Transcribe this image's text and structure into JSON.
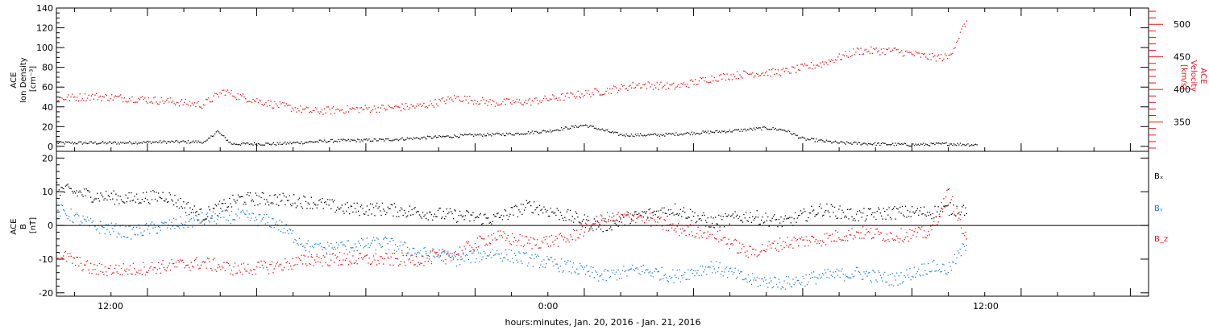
{
  "xlabel": "hours:minutes, Jan. 20, 2016 - Jan. 21, 2016",
  "x_ticks": [
    "12:00",
    "0:00",
    "12:00"
  ],
  "chart_data": [
    {
      "type": "scatter",
      "panel": "top",
      "ylabel_left": [
        "ACE",
        "Ion Density",
        "[cm⁻³]"
      ],
      "ylabel_right": [
        "ACE",
        "Velocity",
        "[km/s]"
      ],
      "x_range_hours": [
        9.5,
        39.5
      ],
      "ylim_left": [
        -5,
        140
      ],
      "ylim_right": [
        305,
        525
      ],
      "yticks_left": [
        "0",
        "20",
        "40",
        "60",
        "80",
        "100",
        "120",
        "140"
      ],
      "yticks_right": [
        "350",
        "400",
        "450",
        "500"
      ],
      "colors": {
        "density": "#000000",
        "velocity": "#ee1111"
      },
      "series": [
        {
          "axis": "left",
          "x": [
            9.5,
            11,
            12.5,
            13.6,
            13.9,
            14.3,
            15.5,
            17,
            18.5,
            20,
            21,
            22,
            23,
            24,
            25,
            26,
            27,
            28,
            29,
            29.5,
            30,
            31,
            32,
            33,
            34,
            34.8
          ],
          "values": [
            4,
            4,
            5,
            5,
            16,
            3,
            3,
            6,
            7,
            10,
            12,
            13,
            16,
            22,
            12,
            12,
            14,
            16,
            19,
            17,
            8,
            4,
            3,
            2,
            3,
            2
          ]
        },
        {
          "axis": "right",
          "x": [
            9.5,
            10.5,
            11.5,
            12.5,
            13.5,
            14.1,
            14.5,
            15.5,
            16.5,
            17.5,
            18.5,
            19.5,
            20.5,
            21.5,
            22.5,
            23.5,
            24.5,
            25.5,
            26.5,
            27.5,
            28.5,
            29.5,
            30.5,
            31.5,
            32.5,
            33.5,
            34,
            34.5
          ],
          "values": [
            387,
            390,
            387,
            383,
            377,
            398,
            390,
            377,
            367,
            370,
            372,
            375,
            388,
            380,
            382,
            390,
            398,
            408,
            405,
            418,
            425,
            428,
            440,
            460,
            460,
            450,
            450,
            507
          ]
        }
      ]
    },
    {
      "type": "scatter",
      "panel": "bottom",
      "ylabel_left": [
        "ACE",
        "B",
        "[nT]"
      ],
      "x_range_hours": [
        9.5,
        39.5
      ],
      "ylim": [
        -21,
        22
      ],
      "yticks": [
        "-20",
        "-10",
        "0",
        "10",
        "20"
      ],
      "legend": [
        "Bₓ",
        "Bᵧ",
        "B_z"
      ],
      "legend_position": "right",
      "series": [
        {
          "name": "Bₓ",
          "color": "#000000",
          "x": [
            9.5,
            10.5,
            11.5,
            12.5,
            13.5,
            14.5,
            15.5,
            16.5,
            17.5,
            18.5,
            19.5,
            20.5,
            21.5,
            22.5,
            23.5,
            24.5,
            25.5,
            26.5,
            27.5,
            28.5,
            29.5,
            30.5,
            31.5,
            32.5,
            33.5,
            34,
            34.5
          ],
          "values": [
            11,
            9,
            8,
            9,
            3,
            8,
            8,
            7,
            5,
            5,
            4,
            3,
            2,
            6,
            3,
            0,
            3,
            5,
            1,
            3,
            1,
            5,
            3,
            4,
            4,
            5,
            5
          ]
        },
        {
          "name": "Bᵧ",
          "color": "#1e7fd4",
          "x": [
            9.5,
            10.5,
            11.5,
            12.5,
            13.5,
            14.5,
            15.5,
            16.5,
            17.5,
            18.5,
            19.5,
            20.5,
            21.5,
            22.5,
            23.5,
            24.5,
            25.5,
            26.5,
            27.5,
            28.5,
            29.5,
            30.5,
            31.5,
            32.5,
            33.5,
            34,
            34.5
          ],
          "values": [
            5,
            0,
            -2,
            0,
            2,
            3,
            1,
            -7,
            -6,
            -5,
            -8,
            -10,
            -8,
            -10,
            -12,
            -15,
            -13,
            -15,
            -12,
            -16,
            -17,
            -15,
            -14,
            -16,
            -12,
            -13,
            -5
          ]
        },
        {
          "name": "B_z",
          "color": "#ee1111",
          "x": [
            9.5,
            10.5,
            11.5,
            12.5,
            13.5,
            14.5,
            15.5,
            16.5,
            17.5,
            18.5,
            19.5,
            20.5,
            21.5,
            22.5,
            23.5,
            24.5,
            25.5,
            26.5,
            27.5,
            28.5,
            29.5,
            30.5,
            31.5,
            32.5,
            33.5,
            34,
            34.5
          ],
          "values": [
            -8,
            -13,
            -13,
            -12,
            -11,
            -13,
            -12,
            -10,
            -10,
            -10,
            -10,
            -8,
            -3,
            -5,
            -4,
            2,
            3,
            -1,
            -2,
            -8,
            -5,
            -4,
            -2,
            -3,
            -2,
            10,
            -5
          ]
        }
      ]
    }
  ]
}
